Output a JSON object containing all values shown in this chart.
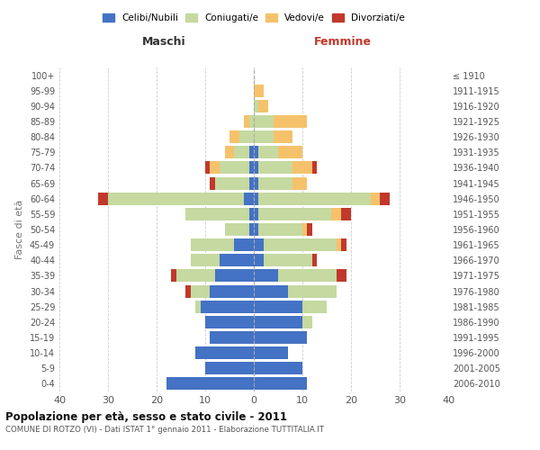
{
  "age_groups": [
    "0-4",
    "5-9",
    "10-14",
    "15-19",
    "20-24",
    "25-29",
    "30-34",
    "35-39",
    "40-44",
    "45-49",
    "50-54",
    "55-59",
    "60-64",
    "65-69",
    "70-74",
    "75-79",
    "80-84",
    "85-89",
    "90-94",
    "95-99",
    "100+"
  ],
  "birth_years": [
    "2006-2010",
    "2001-2005",
    "1996-2000",
    "1991-1995",
    "1986-1990",
    "1981-1985",
    "1976-1980",
    "1971-1975",
    "1966-1970",
    "1961-1965",
    "1956-1960",
    "1951-1955",
    "1946-1950",
    "1941-1945",
    "1936-1940",
    "1931-1935",
    "1926-1930",
    "1921-1925",
    "1916-1920",
    "1911-1915",
    "≤ 1910"
  ],
  "colors": {
    "celibi": "#4472c4",
    "coniugati": "#c5d9a0",
    "vedovi": "#f5c26b",
    "divorziati": "#c0392b"
  },
  "maschi": {
    "celibi": [
      18,
      10,
      12,
      9,
      10,
      11,
      9,
      8,
      7,
      4,
      1,
      1,
      2,
      1,
      1,
      1,
      0,
      0,
      0,
      0,
      0
    ],
    "coniugati": [
      0,
      0,
      0,
      0,
      0,
      1,
      4,
      8,
      6,
      9,
      5,
      13,
      28,
      7,
      6,
      3,
      3,
      1,
      0,
      0,
      0
    ],
    "vedovi": [
      0,
      0,
      0,
      0,
      0,
      0,
      0,
      0,
      0,
      0,
      0,
      0,
      0,
      0,
      2,
      2,
      2,
      1,
      0,
      0,
      0
    ],
    "divorziati": [
      0,
      0,
      0,
      0,
      0,
      0,
      1,
      1,
      0,
      0,
      0,
      0,
      2,
      1,
      1,
      0,
      0,
      0,
      0,
      0,
      0
    ]
  },
  "femmine": {
    "celibi": [
      11,
      10,
      7,
      11,
      10,
      10,
      7,
      5,
      2,
      2,
      1,
      1,
      1,
      1,
      1,
      1,
      0,
      0,
      0,
      0,
      0
    ],
    "coniugati": [
      0,
      0,
      0,
      0,
      2,
      5,
      10,
      12,
      10,
      15,
      9,
      15,
      23,
      7,
      7,
      4,
      4,
      4,
      1,
      0,
      0
    ],
    "vedovi": [
      0,
      0,
      0,
      0,
      0,
      0,
      0,
      0,
      0,
      1,
      1,
      2,
      2,
      3,
      4,
      5,
      4,
      7,
      2,
      2,
      0
    ],
    "divorziati": [
      0,
      0,
      0,
      0,
      0,
      0,
      0,
      2,
      1,
      1,
      1,
      2,
      2,
      0,
      1,
      0,
      0,
      0,
      0,
      0,
      0
    ]
  },
  "xlim": [
    -40,
    40
  ],
  "xticks": [
    -40,
    -30,
    -20,
    -10,
    0,
    10,
    20,
    30,
    40
  ],
  "xticklabels": [
    "40",
    "30",
    "20",
    "10",
    "0",
    "10",
    "20",
    "30",
    "40"
  ],
  "title": "Popolazione per età, sesso e stato civile - 2011",
  "subtitle": "COMUNE DI ROTZO (VI) - Dati ISTAT 1° gennaio 2011 - Elaborazione TUTTITALIA.IT",
  "ylabel_left": "Fasce di età",
  "maschi_label": "Maschi",
  "femmine_label": "Femmine",
  "legend_labels": [
    "Celibi/Nubili",
    "Coniugati/e",
    "Vedovi/e",
    "Divorziati/e"
  ],
  "bg_color": "#ffffff",
  "grid_color": "#cccccc"
}
